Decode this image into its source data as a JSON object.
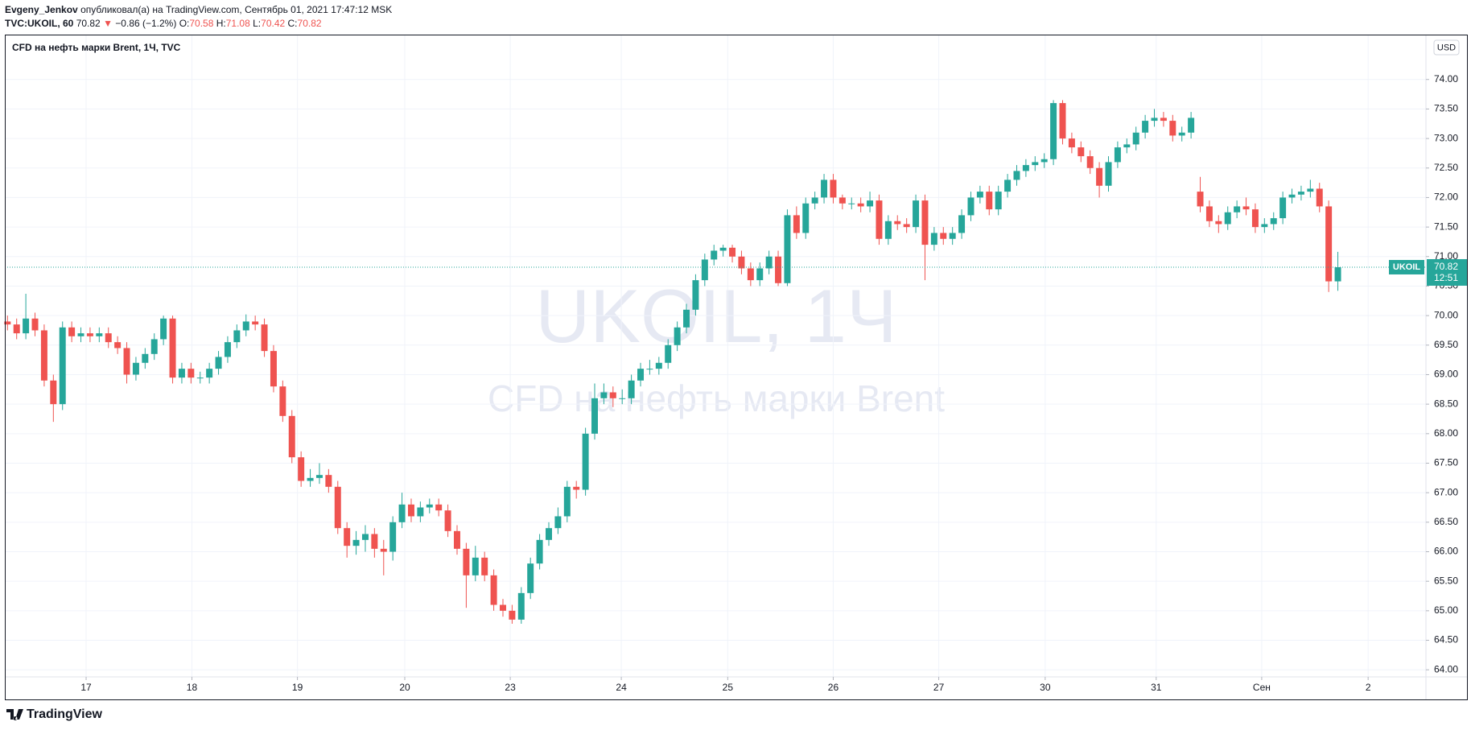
{
  "header": {
    "author": "Evgeny_Jenkov",
    "published": "опубликовал(а) на TradingView.com, Сентябрь 01, 2021 17:47:12 MSK",
    "symbol": "TVC:UKOIL, 60",
    "last": "70.82",
    "arrow": "▼",
    "change": "−0.86 (−1.2%)",
    "ohlc": [
      {
        "label": "O:",
        "value": "70.58"
      },
      {
        "label": "H:",
        "value": "71.08"
      },
      {
        "label": "L:",
        "value": "70.42"
      },
      {
        "label": "C:",
        "value": "70.82"
      }
    ]
  },
  "chart_data": {
    "type": "candlestick",
    "title": "CFD на нефть марки Brent, 1Ч, TVC",
    "currency": "USD",
    "watermark": {
      "symbol": "UKOIL, 1Ч",
      "description": "CFD на нефть марки Brent"
    },
    "up_color": "#26a69a",
    "down_color": "#ef5350",
    "grid": true,
    "last_price": 70.82,
    "last_price_label": "70.82",
    "countdown": "12:51",
    "symbol_tag": "UKOIL",
    "xlim": [
      -0.29,
      154.6
    ],
    "ylim": [
      63.88,
      74.76
    ],
    "xticks": [
      {
        "value": 8.57,
        "label": "17"
      },
      {
        "value": 20.1,
        "label": "18"
      },
      {
        "value": 31.6,
        "label": "19"
      },
      {
        "value": 43.3,
        "label": "20"
      },
      {
        "value": 54.8,
        "label": "23"
      },
      {
        "value": 66.9,
        "label": "24"
      },
      {
        "value": 78.5,
        "label": "25"
      },
      {
        "value": 90.0,
        "label": "26"
      },
      {
        "value": 101.5,
        "label": "27"
      },
      {
        "value": 113.1,
        "label": "30"
      },
      {
        "value": 125.2,
        "label": "31"
      },
      {
        "value": 136.7,
        "label": "Сен"
      },
      {
        "value": 148.3,
        "label": "2"
      }
    ],
    "yticks": [
      {
        "value": 64,
        "label": "64.00"
      },
      {
        "value": 64.5,
        "label": "64.50"
      },
      {
        "value": 65,
        "label": "65.00"
      },
      {
        "value": 65.5,
        "label": "65.50"
      },
      {
        "value": 66,
        "label": "66.00"
      },
      {
        "value": 66.5,
        "label": "66.50"
      },
      {
        "value": 67,
        "label": "67.00"
      },
      {
        "value": 67.5,
        "label": "67.50"
      },
      {
        "value": 68,
        "label": "68.00"
      },
      {
        "value": 68.5,
        "label": "68.50"
      },
      {
        "value": 69,
        "label": "69.00"
      },
      {
        "value": 69.5,
        "label": "69.50"
      },
      {
        "value": 70,
        "label": "70.00"
      },
      {
        "value": 70.5,
        "label": "70.50"
      },
      {
        "value": 71,
        "label": "71.00"
      },
      {
        "value": 71.5,
        "label": "71.50"
      },
      {
        "value": 72,
        "label": "72.00"
      },
      {
        "value": 72.5,
        "label": "72.50"
      },
      {
        "value": 73,
        "label": "73.00"
      },
      {
        "value": 73.5,
        "label": "73.50"
      },
      {
        "value": 74,
        "label": "74.00"
      }
    ],
    "x": [
      0,
      1,
      2,
      3,
      4,
      5,
      6,
      7,
      8,
      9,
      10,
      11,
      12,
      13,
      14,
      15,
      16,
      17,
      18,
      19,
      20,
      21,
      22,
      23,
      24,
      25,
      26,
      27,
      28,
      29,
      30,
      31,
      32,
      33,
      34,
      35,
      36,
      37,
      38,
      39,
      40,
      41,
      42,
      43,
      44,
      45,
      46,
      47,
      48,
      49,
      50,
      51,
      52,
      53,
      54,
      55,
      56,
      57,
      58,
      59,
      60,
      61,
      62,
      63,
      64,
      65,
      66,
      67,
      68,
      69,
      70,
      71,
      72,
      73,
      74,
      75,
      76,
      77,
      78,
      79,
      80,
      81,
      82,
      83,
      84,
      85,
      86,
      87,
      88,
      89,
      90,
      91,
      92,
      93,
      94,
      95,
      96,
      97,
      98,
      99,
      100,
      101,
      102,
      103,
      104,
      105,
      106,
      107,
      108,
      109,
      110,
      111,
      112,
      113,
      114,
      115,
      116,
      117,
      118,
      119,
      120,
      121,
      122,
      123,
      124,
      125,
      126,
      127,
      128,
      129,
      130,
      131,
      132,
      133,
      134,
      135,
      136,
      137,
      138,
      139,
      140,
      141,
      142,
      143,
      144,
      145
    ],
    "open": [
      69.9,
      69.85,
      69.7,
      69.95,
      69.75,
      68.9,
      68.5,
      69.8,
      69.65,
      69.7,
      69.65,
      69.7,
      69.55,
      69.45,
      69.0,
      69.2,
      69.35,
      69.6,
      69.95,
      68.95,
      69.1,
      68.95,
      68.95,
      69.1,
      69.3,
      69.55,
      69.75,
      69.9,
      69.85,
      69.4,
      68.8,
      68.3,
      67.6,
      67.2,
      67.25,
      67.3,
      67.1,
      66.4,
      66.1,
      66.2,
      66.3,
      66.05,
      66.0,
      66.5,
      66.8,
      66.6,
      66.75,
      66.8,
      66.7,
      66.35,
      66.05,
      65.6,
      65.9,
      65.6,
      65.1,
      65.0,
      64.85,
      65.3,
      65.8,
      66.2,
      66.4,
      66.6,
      67.1,
      67.05,
      68.0,
      68.6,
      68.7,
      68.6,
      68.6,
      68.9,
      69.1,
      69.1,
      69.2,
      69.5,
      69.8,
      70.1,
      70.6,
      70.95,
      71.1,
      71.15,
      71.0,
      70.8,
      70.6,
      70.8,
      71.0,
      70.55,
      71.7,
      71.4,
      71.9,
      72.0,
      72.3,
      72.0,
      71.9,
      71.9,
      71.85,
      71.95,
      71.3,
      71.6,
      71.55,
      71.5,
      71.95,
      71.2,
      71.4,
      71.3,
      71.4,
      71.7,
      72.0,
      72.1,
      71.8,
      72.1,
      72.3,
      72.45,
      72.55,
      72.6,
      72.65,
      73.6,
      73.0,
      72.85,
      72.7,
      72.5,
      72.2,
      72.6,
      72.85,
      72.9,
      73.1,
      73.3,
      73.35,
      73.3,
      73.05,
      73.1,
      72.1,
      71.85,
      71.6,
      71.55,
      71.75,
      71.85,
      71.8,
      71.5,
      71.55,
      71.65,
      72.0,
      72.05,
      72.1,
      72.15,
      71.85,
      70.58
    ],
    "high": [
      70.0,
      69.95,
      70.37,
      70.05,
      69.85,
      69.0,
      69.9,
      69.9,
      69.8,
      69.8,
      69.8,
      69.8,
      69.65,
      69.55,
      69.3,
      69.45,
      69.7,
      70.0,
      70.0,
      69.2,
      69.2,
      69.05,
      69.2,
      69.4,
      69.65,
      69.85,
      70.02,
      70.0,
      69.95,
      69.5,
      68.9,
      68.4,
      67.7,
      67.4,
      67.5,
      67.4,
      67.2,
      66.5,
      66.35,
      66.45,
      66.4,
      66.2,
      66.6,
      67.0,
      66.9,
      66.85,
      66.9,
      66.9,
      66.8,
      66.45,
      66.15,
      66.1,
      66.0,
      65.7,
      65.2,
      65.1,
      65.4,
      65.9,
      66.3,
      66.5,
      66.75,
      67.2,
      67.2,
      68.1,
      68.85,
      68.85,
      68.8,
      68.75,
      69.0,
      69.2,
      69.25,
      69.3,
      69.6,
      69.9,
      70.2,
      70.7,
      71.05,
      71.2,
      71.2,
      71.2,
      71.1,
      70.9,
      70.9,
      71.1,
      71.1,
      71.8,
      71.85,
      72.0,
      72.1,
      72.4,
      72.4,
      72.05,
      72.0,
      72.0,
      72.1,
      72.05,
      71.7,
      71.7,
      71.65,
      72.05,
      72.05,
      71.5,
      71.5,
      71.5,
      71.8,
      72.1,
      72.2,
      72.2,
      72.2,
      72.4,
      72.55,
      72.65,
      72.7,
      72.75,
      73.65,
      73.65,
      73.1,
      72.95,
      72.8,
      72.6,
      72.7,
      72.95,
      73.0,
      73.2,
      73.4,
      73.5,
      73.45,
      73.4,
      73.2,
      73.45,
      72.35,
      71.95,
      71.7,
      71.85,
      71.95,
      72.0,
      71.9,
      71.65,
      71.75,
      72.1,
      72.15,
      72.2,
      72.3,
      72.25,
      71.95,
      71.08
    ],
    "low": [
      69.75,
      69.6,
      69.6,
      69.65,
      68.8,
      68.2,
      68.4,
      69.55,
      69.55,
      69.55,
      69.55,
      69.45,
      69.35,
      68.85,
      68.9,
      69.1,
      69.25,
      69.5,
      68.85,
      68.85,
      68.85,
      68.85,
      68.85,
      69.0,
      69.2,
      69.45,
      69.65,
      69.75,
      69.3,
      68.7,
      68.2,
      67.5,
      67.1,
      67.1,
      67.15,
      67.0,
      66.3,
      65.9,
      65.95,
      66.0,
      65.9,
      65.6,
      65.85,
      66.4,
      66.5,
      66.5,
      66.65,
      66.6,
      66.25,
      65.95,
      65.05,
      65.5,
      65.5,
      65.0,
      64.9,
      64.78,
      64.78,
      65.2,
      65.7,
      66.1,
      66.3,
      66.5,
      66.9,
      66.95,
      67.9,
      68.5,
      68.45,
      68.5,
      68.5,
      68.8,
      69.0,
      69.0,
      69.1,
      69.4,
      69.7,
      70.0,
      70.5,
      70.85,
      71.0,
      70.9,
      70.7,
      70.5,
      70.5,
      70.7,
      70.5,
      70.5,
      71.3,
      71.3,
      71.8,
      71.9,
      71.9,
      71.8,
      71.8,
      71.75,
      71.75,
      71.2,
      71.2,
      71.45,
      71.4,
      71.4,
      70.6,
      71.1,
      71.2,
      71.2,
      71.3,
      71.6,
      71.9,
      71.7,
      71.7,
      72.0,
      72.2,
      72.35,
      72.45,
      72.5,
      72.55,
      72.9,
      72.75,
      72.6,
      72.4,
      72.0,
      72.1,
      72.5,
      72.75,
      72.8,
      73.0,
      73.2,
      73.2,
      72.95,
      72.95,
      73.0,
      71.75,
      71.5,
      71.4,
      71.45,
      71.65,
      71.7,
      71.4,
      71.4,
      71.45,
      71.55,
      71.9,
      71.95,
      72.0,
      71.75,
      70.4,
      70.42
    ],
    "close": [
      69.85,
      69.7,
      69.95,
      69.75,
      68.9,
      68.5,
      69.8,
      69.65,
      69.7,
      69.65,
      69.7,
      69.55,
      69.45,
      69.0,
      69.2,
      69.35,
      69.6,
      69.95,
      68.95,
      69.1,
      68.95,
      68.95,
      69.1,
      69.3,
      69.55,
      69.75,
      69.9,
      69.85,
      69.4,
      68.8,
      68.3,
      67.6,
      67.2,
      67.25,
      67.3,
      67.1,
      66.4,
      66.1,
      66.2,
      66.3,
      66.05,
      66.0,
      66.5,
      66.8,
      66.6,
      66.75,
      66.8,
      66.7,
      66.35,
      66.05,
      65.6,
      65.9,
      65.6,
      65.1,
      65.0,
      64.85,
      65.3,
      65.8,
      66.2,
      66.4,
      66.6,
      67.1,
      67.05,
      68.0,
      68.6,
      68.7,
      68.6,
      68.6,
      68.9,
      69.1,
      69.1,
      69.2,
      69.5,
      69.8,
      70.1,
      70.6,
      70.95,
      71.1,
      71.15,
      71.0,
      70.8,
      70.6,
      70.8,
      71.0,
      70.55,
      71.7,
      71.4,
      71.9,
      72.0,
      72.3,
      72.0,
      71.9,
      71.9,
      71.85,
      71.95,
      71.3,
      71.6,
      71.55,
      71.5,
      71.95,
      71.2,
      71.4,
      71.3,
      71.4,
      71.7,
      72.0,
      72.1,
      71.8,
      72.1,
      72.3,
      72.45,
      72.55,
      72.6,
      72.65,
      73.6,
      73.0,
      72.85,
      72.7,
      72.5,
      72.2,
      72.6,
      72.85,
      72.9,
      73.1,
      73.3,
      73.35,
      73.3,
      73.05,
      73.1,
      73.35,
      71.85,
      71.6,
      71.55,
      71.75,
      71.85,
      71.8,
      71.5,
      71.55,
      71.65,
      72.0,
      72.05,
      72.1,
      72.15,
      71.85,
      70.58,
      70.82
    ]
  },
  "footer": {
    "brand": "TradingView"
  }
}
